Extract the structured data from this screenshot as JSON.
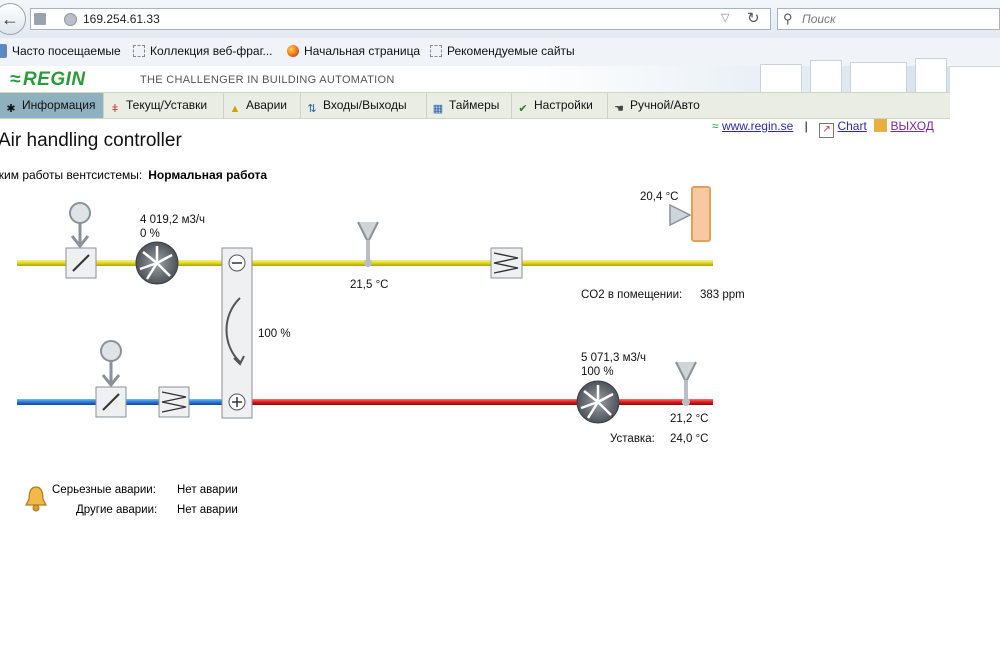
{
  "browser": {
    "url": "169.254.61.33",
    "search_placeholder": "Поиск",
    "bookmarks": [
      "Часто посещаемые",
      "Коллекция веб-фраг...",
      "Начальная страница",
      "Рекомендуемые сайты"
    ]
  },
  "header": {
    "logo": "REGIN",
    "tagline": "THE CHALLENGER IN BUILDING AUTOMATION"
  },
  "nav": [
    {
      "label": "Информация",
      "icon": "fan-icon"
    },
    {
      "label": "Текущ/Уставки",
      "icon": "thermometer-icon"
    },
    {
      "label": "Аварии",
      "icon": "bell-icon"
    },
    {
      "label": "Входы/Выходы",
      "icon": "arrows-icon"
    },
    {
      "label": "Таймеры",
      "icon": "calendar-icon"
    },
    {
      "label": "Настройки",
      "icon": "checklist-icon"
    },
    {
      "label": "Ручной/Авто",
      "icon": "hand-icon"
    }
  ],
  "links": {
    "site": "www.regin.se",
    "separator": "|",
    "chart": "Chart",
    "logout": "ВЫХОД"
  },
  "page": {
    "title": "Air handling controller",
    "mode_label": "жим работы вентсистемы:",
    "mode_value": "Нормальная работа"
  },
  "diagram": {
    "supply_fan_flow": "4 019,2 м3/ч",
    "supply_fan_speed": "0 %",
    "supply_temp": "21,5 °C",
    "room_temp": "20,4 °C",
    "co2_label": "CO2 в помещении:",
    "co2_value": "383 ppm",
    "heat_exchanger": "100 %",
    "exhaust_fan_flow": "5 071,3 м3/ч",
    "exhaust_fan_speed": "100 %",
    "extract_temp": "21,2 °C",
    "setpoint_label": "Уставка:",
    "setpoint_value": "24,0 °C"
  },
  "alarms": {
    "serious_label": "Серьезные аварии:",
    "serious_value": "Нет аварии",
    "other_label": "Другие аварии:",
    "other_value": "Нет аварии"
  },
  "colors": {
    "supply_duct": "#e8e040",
    "exhaust_duct": "#d82020",
    "outdoor_duct": "#2a7ad8",
    "nav_active": "#8fb1bf"
  }
}
